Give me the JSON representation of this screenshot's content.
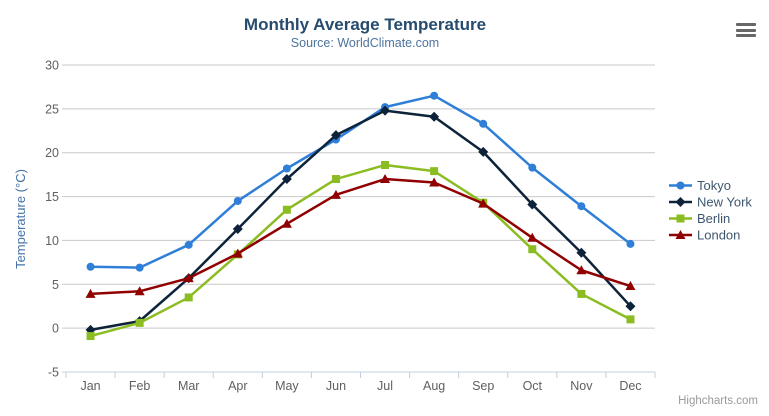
{
  "chart_data": {
    "type": "line",
    "title": "Monthly Average Temperature",
    "subtitle": "Source: WorldClimate.com",
    "xlabel": "",
    "ylabel": "Temperature (°C)",
    "categories": [
      "Jan",
      "Feb",
      "Mar",
      "Apr",
      "May",
      "Jun",
      "Jul",
      "Aug",
      "Sep",
      "Oct",
      "Nov",
      "Dec"
    ],
    "ylim": [
      -5,
      30
    ],
    "yticks": [
      -5,
      0,
      5,
      10,
      15,
      20,
      25,
      30
    ],
    "grid": true,
    "legend_position": "right",
    "series": [
      {
        "name": "Tokyo",
        "color": "#2f7ed8",
        "marker": "circle",
        "values": [
          7.0,
          6.9,
          9.5,
          14.5,
          18.2,
          21.5,
          25.2,
          26.5,
          23.3,
          18.3,
          13.9,
          9.6
        ]
      },
      {
        "name": "New York",
        "color": "#0d233a",
        "marker": "diamond",
        "values": [
          -0.2,
          0.8,
          5.7,
          11.3,
          17.0,
          22.0,
          24.8,
          24.1,
          20.1,
          14.1,
          8.6,
          2.5
        ]
      },
      {
        "name": "Berlin",
        "color": "#8bbc21",
        "marker": "square",
        "values": [
          -0.9,
          0.6,
          3.5,
          8.4,
          13.5,
          17.0,
          18.6,
          17.9,
          14.3,
          9.0,
          3.9,
          1.0
        ]
      },
      {
        "name": "London",
        "color": "#910000",
        "marker": "triangle",
        "values": [
          3.9,
          4.2,
          5.7,
          8.5,
          11.9,
          15.2,
          17.0,
          16.6,
          14.2,
          10.3,
          6.6,
          4.8
        ]
      }
    ]
  },
  "credit": "Highcharts.com",
  "menu": {
    "icon_name": "hamburger-menu-icon"
  },
  "colors": {
    "title": "#274b6d",
    "subtitle": "#4d759e",
    "y_axis_title": "#4572a7",
    "axis_labels": "#606060",
    "gridline": "#c9c9c9",
    "axis_line": "#c0d0e0",
    "legend_text": "#3e576f",
    "credit_text": "#9a9a9a",
    "menu_icon": "#676767",
    "background": "#ffffff"
  }
}
